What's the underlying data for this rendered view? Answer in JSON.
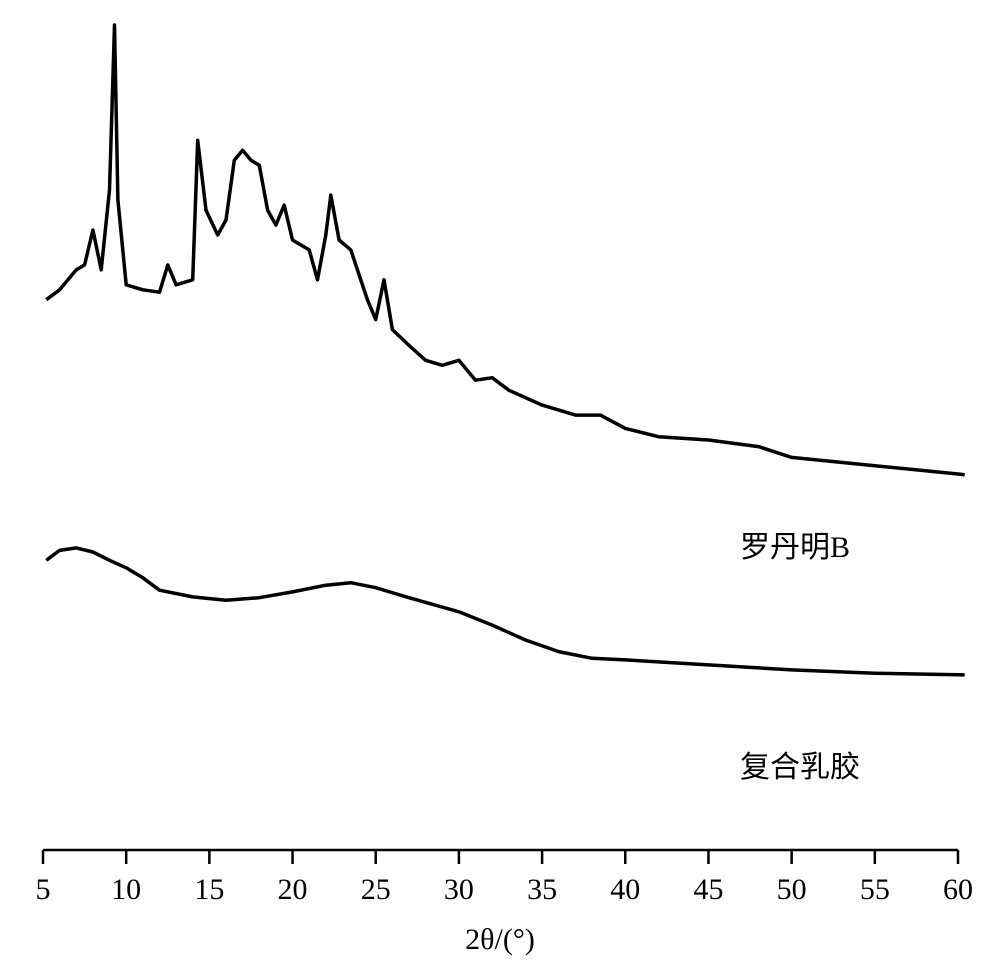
{
  "chart_data": {
    "type": "line",
    "x_label": "2θ/(°)",
    "xlim": [
      5,
      60
    ],
    "xticks": [
      5,
      10,
      15,
      20,
      25,
      30,
      35,
      40,
      45,
      50,
      55,
      60
    ],
    "ylim": [
      0,
      100
    ],
    "series": [
      {
        "name": "罗丹明B",
        "color": "#000000",
        "x": [
          5.2,
          6,
          7,
          7.5,
          8,
          8.5,
          9,
          9.3,
          9.5,
          10,
          11,
          12,
          12.5,
          13,
          14,
          14.3,
          14.8,
          15.5,
          16,
          16.5,
          17,
          17.5,
          18,
          18.5,
          19,
          19.5,
          20,
          21,
          21.5,
          22,
          22.3,
          22.8,
          23.5,
          24.5,
          25,
          25.5,
          26,
          27,
          28,
          29,
          30,
          31,
          32,
          33,
          35,
          37,
          38.5,
          40,
          42,
          45,
          48,
          50,
          55,
          60,
          60.4
        ],
        "values": [
          66.3,
          67.5,
          69.9,
          70.5,
          74.7,
          69.9,
          79.5,
          99.4,
          78.3,
          68.1,
          67.5,
          67.2,
          70.5,
          68.1,
          68.7,
          85.5,
          77.1,
          74.1,
          75.9,
          83.1,
          84.3,
          83.1,
          82.5,
          77.1,
          75.3,
          77.7,
          73.5,
          72.3,
          68.7,
          74.1,
          78.9,
          73.5,
          72.3,
          66.3,
          63.9,
          68.7,
          62.7,
          60.8,
          59.0,
          58.4,
          59.0,
          56.6,
          56.9,
          55.4,
          53.6,
          52.4,
          52.4,
          50.8,
          49.8,
          49.4,
          48.6,
          47.3,
          46.3,
          45.3,
          45.2
        ]
      },
      {
        "name": "复合乳胶",
        "color": "#000000",
        "x": [
          5.2,
          6,
          7,
          8,
          9,
          10,
          11,
          12,
          14,
          16,
          18,
          20,
          22,
          23.5,
          25,
          27,
          30,
          32,
          34,
          36,
          38,
          40,
          45,
          50,
          55,
          60.4
        ],
        "values": [
          34.9,
          36.1,
          36.4,
          35.9,
          34.9,
          34.0,
          32.8,
          31.3,
          30.5,
          30.1,
          30.4,
          31.1,
          31.9,
          32.2,
          31.6,
          30.4,
          28.7,
          27.1,
          25.3,
          23.9,
          23.1,
          22.9,
          22.3,
          21.7,
          21.3,
          21.1
        ]
      }
    ]
  }
}
